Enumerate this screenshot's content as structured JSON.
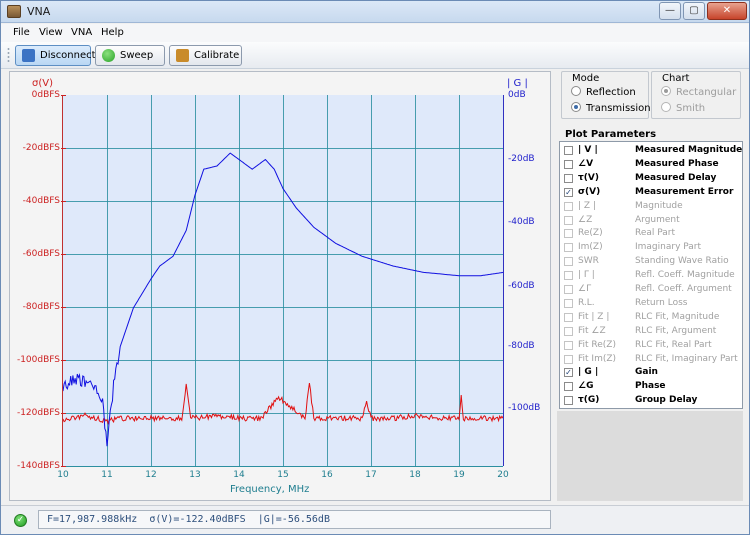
{
  "window": {
    "title": "VNA",
    "minimize": "—",
    "maximize": "▢",
    "close": "✕"
  },
  "menu": [
    "File",
    "View",
    "VNA",
    "Help"
  ],
  "toolbar": {
    "disconnect": "Disconnect",
    "sweep": "Sweep",
    "calibrate": "Calibrate"
  },
  "colors": {
    "sigma": "#e01010",
    "gain": "#1010e0",
    "grid": "#2c8fa0",
    "plot_bg": "#dfe9fa"
  },
  "mode": {
    "title": "Mode",
    "options": [
      "Reflection",
      "Transmission"
    ],
    "selected": "Transmission"
  },
  "chart": {
    "title": "Chart",
    "options": [
      "Rectangular",
      "Smith"
    ],
    "selected": "Rectangular"
  },
  "params": {
    "title": "Plot Parameters",
    "items": [
      {
        "symbol": "| V |",
        "label": "Measured Magnitude",
        "checked": false,
        "enabled": true
      },
      {
        "symbol": "∠V",
        "label": "Measured Phase",
        "checked": false,
        "enabled": true
      },
      {
        "symbol": "τ(V)",
        "label": "Measured Delay",
        "checked": false,
        "enabled": true
      },
      {
        "symbol": "σ(V)",
        "label": "Measurement Error",
        "checked": true,
        "enabled": true
      },
      {
        "symbol": "| Z |",
        "label": "Magnitude",
        "checked": false,
        "enabled": false
      },
      {
        "symbol": "∠Z",
        "label": "Argument",
        "checked": false,
        "enabled": false
      },
      {
        "symbol": "Re(Z)",
        "label": "Real Part",
        "checked": false,
        "enabled": false
      },
      {
        "symbol": "Im(Z)",
        "label": "Imaginary Part",
        "checked": false,
        "enabled": false
      },
      {
        "symbol": "SWR",
        "label": "Standing Wave Ratio",
        "checked": false,
        "enabled": false
      },
      {
        "symbol": "| Γ |",
        "label": "Refl. Coeff. Magnitude",
        "checked": false,
        "enabled": false
      },
      {
        "symbol": "∠Γ",
        "label": "Refl. Coeff. Argument",
        "checked": false,
        "enabled": false
      },
      {
        "symbol": "R.L.",
        "label": "Return Loss",
        "checked": false,
        "enabled": false
      },
      {
        "symbol": "Fit | Z |",
        "label": "RLC Fit, Magnitude",
        "checked": false,
        "enabled": false
      },
      {
        "symbol": "Fit ∠Z",
        "label": "RLC Fit, Argument",
        "checked": false,
        "enabled": false
      },
      {
        "symbol": "Fit Re(Z)",
        "label": "RLC Fit, Real Part",
        "checked": false,
        "enabled": false
      },
      {
        "symbol": "Fit Im(Z)",
        "label": "RLC Fit, Imaginary Part",
        "checked": false,
        "enabled": false
      },
      {
        "symbol": "| G |",
        "label": "Gain",
        "checked": true,
        "enabled": true
      },
      {
        "symbol": "∠G",
        "label": "Phase",
        "checked": false,
        "enabled": true
      },
      {
        "symbol": "τ(G)",
        "label": "Group Delay",
        "checked": false,
        "enabled": true
      }
    ]
  },
  "plot": {
    "left_axis_title": "σ(V)",
    "right_axis_title": "| G |",
    "x_axis_title": "Frequency, MHz",
    "left_ticks": [
      "0dBFS",
      "-20dBFS",
      "-40dBFS",
      "-60dBFS",
      "-80dBFS",
      "-100dBFS",
      "-120dBFS",
      "-140dBFS"
    ],
    "right_ticks": [
      "0dB",
      "-20dB",
      "-40dB",
      "-60dB",
      "-80dB",
      "-100dB"
    ],
    "x_ticks": [
      "10",
      "11",
      "12",
      "13",
      "14",
      "15",
      "16",
      "17",
      "18",
      "19",
      "20"
    ]
  },
  "chart_data": {
    "type": "line",
    "xlabel": "Frequency, MHz",
    "ylabel": "σ(V)",
    "y2label": "| G |",
    "xlim": [
      10,
      20
    ],
    "ylim": [
      -140,
      0
    ],
    "y2lim": [
      -115,
      0
    ],
    "grid": true,
    "series": [
      {
        "name": "σ(V)",
        "axis": "left",
        "x": [
          10,
          10.5,
          11,
          11.3,
          11.8,
          12.2,
          12.7,
          12.8,
          12.9,
          13.5,
          14,
          14.5,
          14.9,
          15.5,
          15.6,
          15.7,
          16.2,
          16.8,
          16.9,
          17,
          17.5,
          18,
          18.5,
          19,
          19.05,
          19.1,
          19.5,
          20
        ],
        "y": [
          -123,
          -121,
          -123,
          -122,
          -122,
          -122,
          -122,
          -110,
          -122,
          -121,
          -122,
          -122,
          -114,
          -122,
          -109,
          -122,
          -122,
          -122,
          -115,
          -122,
          -122,
          -121,
          -122,
          -122,
          -114,
          -122,
          -122,
          -122
        ]
      },
      {
        "name": "| G |",
        "axis": "right",
        "x": [
          10,
          10.3,
          10.7,
          10.9,
          11.0,
          11.05,
          11.15,
          11.3,
          11.6,
          12.0,
          12.2,
          12.5,
          12.8,
          13.0,
          13.2,
          13.5,
          13.8,
          14.0,
          14.3,
          14.6,
          14.8,
          15.0,
          15.3,
          15.7,
          16.2,
          16.8,
          17.5,
          18.2,
          19.0,
          19.5,
          20.0
        ],
        "y": [
          -90,
          -88,
          -90,
          -95,
          -108,
          -102,
          -90,
          -78,
          -66,
          -57,
          -53,
          -50,
          -42,
          -31,
          -23,
          -22,
          -18,
          -20,
          -23,
          -20,
          -23,
          -29,
          -35,
          -41,
          -46,
          -50,
          -53,
          -55,
          -56,
          -56,
          -55
        ]
      }
    ]
  },
  "status": {
    "readout": "F=17,987.988kHz  σ(V)=-122.40dBFS  |G|=-56.56dB"
  }
}
